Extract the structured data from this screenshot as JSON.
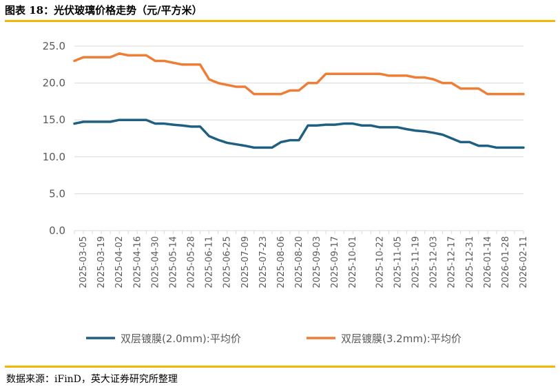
{
  "figure": {
    "title": "图表 18：光伏玻璃价格走势（元/平方米）",
    "source": "数据来源：iFinD，英大证券研究所整理"
  },
  "colors": {
    "series1": "#1f5f82",
    "series2": "#ee7d35",
    "accent_rule": "#f2b705",
    "grid": "#d9d9d9",
    "tick_text": "#595959"
  },
  "chart_data": {
    "type": "line",
    "title": "",
    "xlabel": "",
    "ylabel": "",
    "ylim": [
      0,
      25
    ],
    "yticks": [
      0,
      5,
      10,
      15,
      20,
      25
    ],
    "ytick_labels": [
      "0.0",
      "5.0",
      "10.0",
      "15.0",
      "20.0",
      "25.0"
    ],
    "grid": true,
    "legend_position": "bottom",
    "x": [
      "2025-02-26",
      "2025-03-05",
      "2025-03-12",
      "2025-03-19",
      "2025-03-26",
      "2025-04-02",
      "2025-04-09",
      "2025-04-16",
      "2025-04-23",
      "2025-04-30",
      "2025-05-07",
      "2025-05-14",
      "2025-05-21",
      "2025-05-28",
      "2025-06-04",
      "2025-06-11",
      "2025-06-18",
      "2025-06-25",
      "2025-07-02",
      "2025-07-09",
      "2025-07-16",
      "2025-07-23",
      "2025-07-30",
      "2025-08-06",
      "2025-08-13",
      "2025-08-20",
      "2025-08-27",
      "2025-09-03",
      "2025-09-10",
      "2025-09-17",
      "2025-09-24",
      "2025-10-01",
      "2025-10-08",
      "2025-10-15",
      "2025-10-22",
      "2025-10-29",
      "2025-11-05",
      "2025-11-12",
      "2025-11-19",
      "2025-11-26",
      "2025-12-03",
      "2025-12-10",
      "2025-12-17",
      "2025-12-24",
      "2025-12-31",
      "2026-01-07",
      "2026-01-14",
      "2026-01-21",
      "2026-01-28",
      "2026-02-04",
      "2026-02-11"
    ],
    "xtick_labels": [
      "2025-03-05",
      "2025-03-19",
      "2025-04-02",
      "2025-04-16",
      "2025-04-30",
      "2025-05-14",
      "2025-05-28",
      "2025-06-11",
      "2025-06-25",
      "2025-07-09",
      "2025-07-23",
      "2025-08-06",
      "2025-08-20",
      "2025-09-03",
      "2025-09-17",
      "2025-10-01",
      "2025-10-22",
      "2025-11-05",
      "2025-11-19",
      "2025-12-03",
      "2025-12-17",
      "2025-12-31",
      "2026-01-14",
      "2026-01-28",
      "2026-02-11"
    ],
    "series": [
      {
        "name": "双层镀膜(2.0mm):平均价",
        "color_key": "series1",
        "values": [
          14.5,
          14.75,
          14.75,
          14.75,
          14.75,
          15.0,
          15.0,
          15.0,
          15.0,
          14.5,
          14.5,
          14.35,
          14.25,
          14.1,
          14.1,
          12.8,
          12.3,
          11.9,
          11.7,
          11.5,
          11.25,
          11.25,
          11.25,
          12.0,
          12.25,
          12.25,
          14.25,
          14.25,
          14.35,
          14.35,
          14.5,
          14.5,
          14.25,
          14.25,
          14.0,
          14.0,
          14.0,
          13.75,
          13.55,
          13.45,
          13.25,
          13.0,
          12.5,
          12.0,
          12.0,
          11.5,
          11.5,
          11.25,
          11.25,
          11.25,
          11.25
        ]
      },
      {
        "name": "双层镀膜(3.2mm):平均价",
        "color_key": "series2",
        "values": [
          23.0,
          23.5,
          23.5,
          23.5,
          23.5,
          24.0,
          23.75,
          23.75,
          23.75,
          23.0,
          23.0,
          22.75,
          22.5,
          22.5,
          22.5,
          20.5,
          20.0,
          19.75,
          19.5,
          19.5,
          18.5,
          18.5,
          18.5,
          18.5,
          19.0,
          19.0,
          20.0,
          20.0,
          21.25,
          21.25,
          21.25,
          21.25,
          21.25,
          21.25,
          21.25,
          21.0,
          21.0,
          21.0,
          20.75,
          20.75,
          20.5,
          20.0,
          20.0,
          19.25,
          19.25,
          19.25,
          18.5,
          18.5,
          18.5,
          18.5,
          18.5
        ]
      }
    ]
  }
}
